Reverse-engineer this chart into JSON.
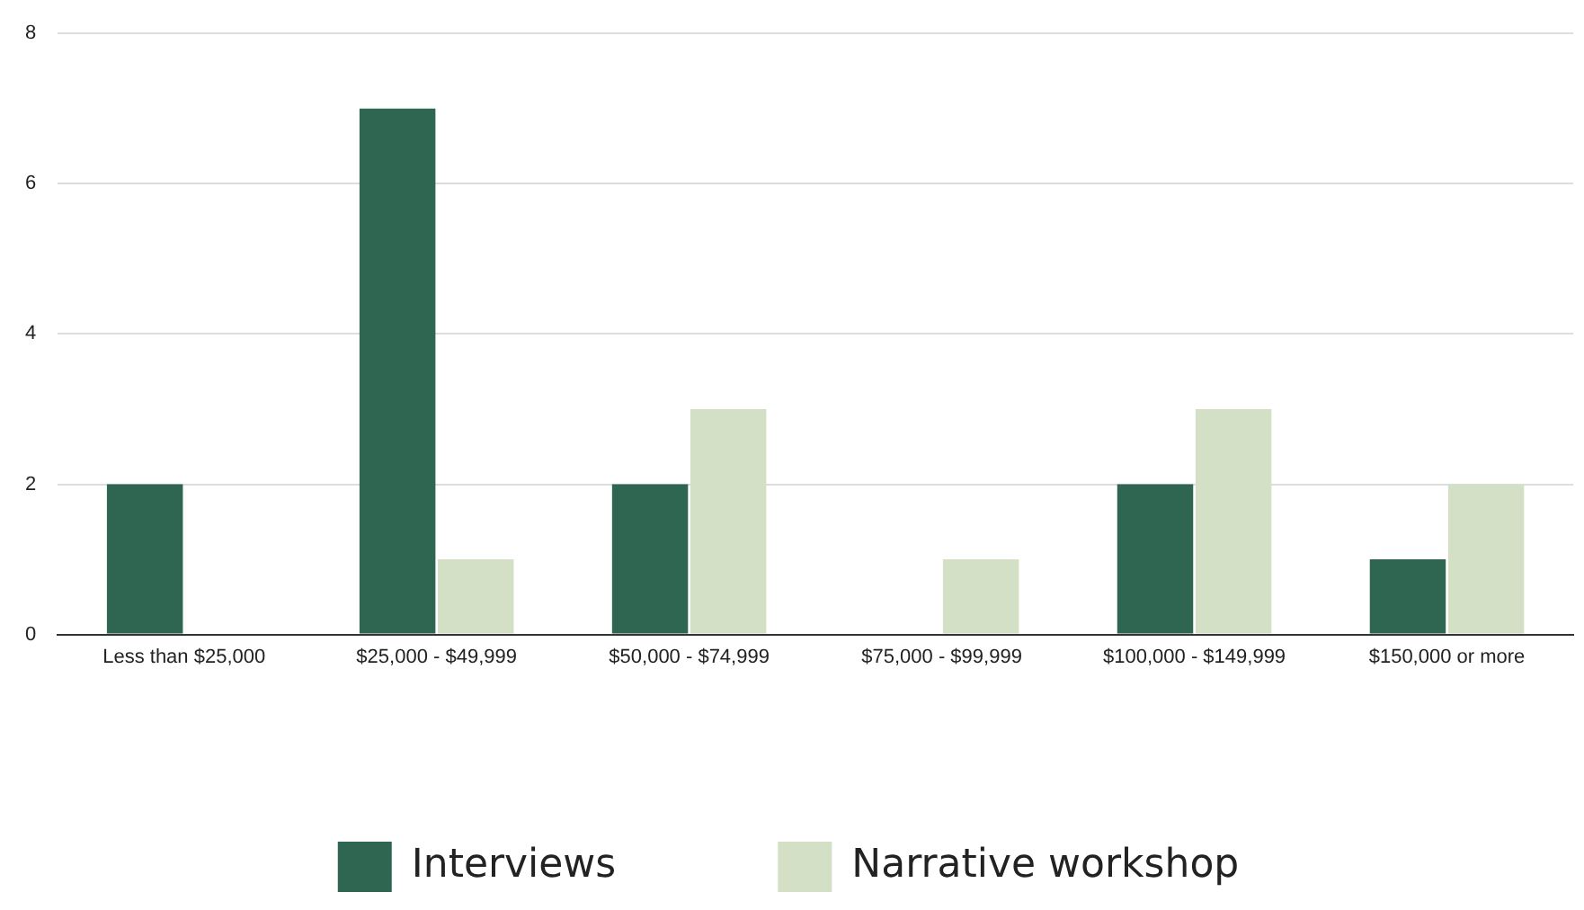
{
  "chart_data": {
    "type": "bar",
    "categories": [
      "Less than $25,000",
      "$25,000 - $49,999",
      "$50,000 - $74,999",
      "$75,000 - $99,999",
      "$100,000 - $149,999",
      "$150,000 or more"
    ],
    "series": [
      {
        "name": "Interviews",
        "color": "#2e6652",
        "values": [
          2,
          7,
          2,
          0,
          2,
          1
        ]
      },
      {
        "name": "Narrative workshop",
        "color": "#d3e0c5",
        "values": [
          0,
          1,
          3,
          1,
          3,
          2
        ]
      }
    ],
    "ylim": [
      0,
      8
    ],
    "yticks": [
      0,
      2,
      4,
      6,
      8
    ],
    "grid": "y",
    "legend": "bottom"
  }
}
